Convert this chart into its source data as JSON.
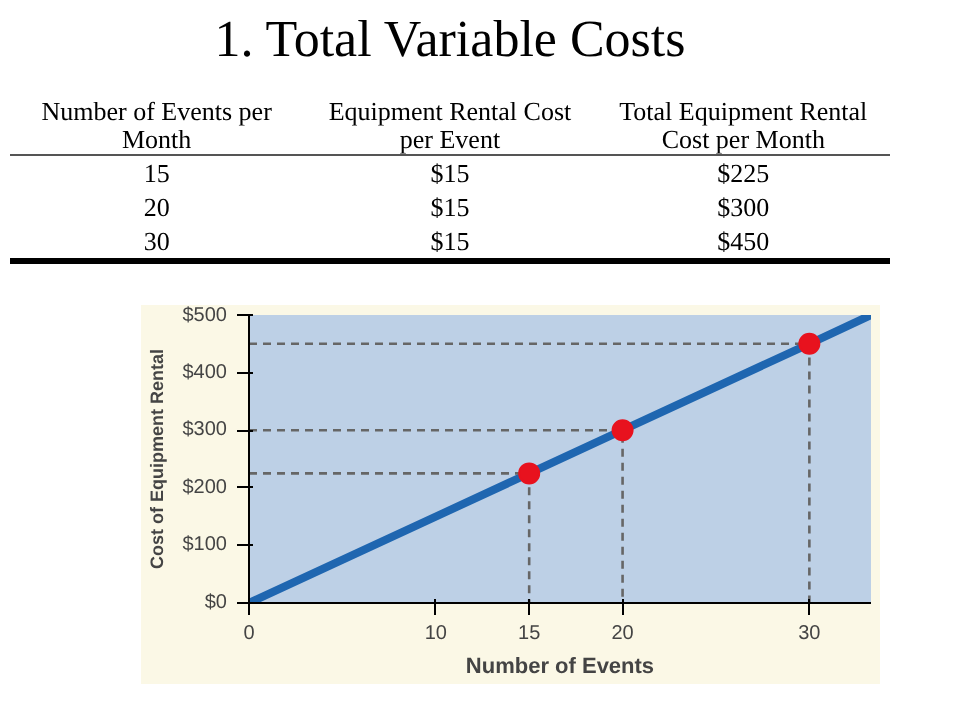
{
  "chart_data": {
    "type": "line",
    "title": "1. Total Variable Costs",
    "xlabel": "Number of Events",
    "ylabel": "Cost of Equipment Rental",
    "annotations": [
      "Number of Events per Month",
      "Equipment Rental Cost per Event",
      "Total Equipment Rental Cost per Month",
      "15",
      "$15",
      "$225",
      "20",
      "$15",
      "$300",
      "30",
      "$15",
      "$450"
    ],
    "xlim": [
      0,
      33.3
    ],
    "ylim": [
      0,
      500
    ],
    "xticks": [
      0,
      10,
      15,
      20,
      30
    ],
    "yticks": [
      {
        "value": 0,
        "label": "$0"
      },
      {
        "value": 100,
        "label": "$100"
      },
      {
        "value": 200,
        "label": "$200"
      },
      {
        "value": 300,
        "label": "$300"
      },
      {
        "value": 400,
        "label": "$400"
      },
      {
        "value": 500,
        "label": "$500"
      }
    ],
    "grid": false,
    "series": [
      {
        "type": "line",
        "color": "#1f66b0",
        "x": [
          0,
          15,
          20,
          30,
          33.3
        ],
        "values": [
          0,
          225,
          300,
          450,
          500
        ]
      },
      {
        "type": "line",
        "color": "#666666",
        "line_style": "dashed",
        "x": [
          0,
          15,
          15
        ],
        "values": [
          225,
          225,
          0
        ]
      },
      {
        "type": "line",
        "color": "#666666",
        "line_style": "dashed",
        "x": [
          0,
          20,
          20
        ],
        "values": [
          300,
          300,
          0
        ]
      },
      {
        "type": "line",
        "color": "#666666",
        "line_style": "dashed",
        "x": [
          0,
          30,
          30
        ],
        "values": [
          450,
          450,
          0
        ]
      },
      {
        "type": "scatter",
        "color": "#e8121e",
        "marker": "circle",
        "x": [
          15,
          20,
          30
        ],
        "values": [
          225,
          300,
          450
        ]
      }
    ]
  }
}
